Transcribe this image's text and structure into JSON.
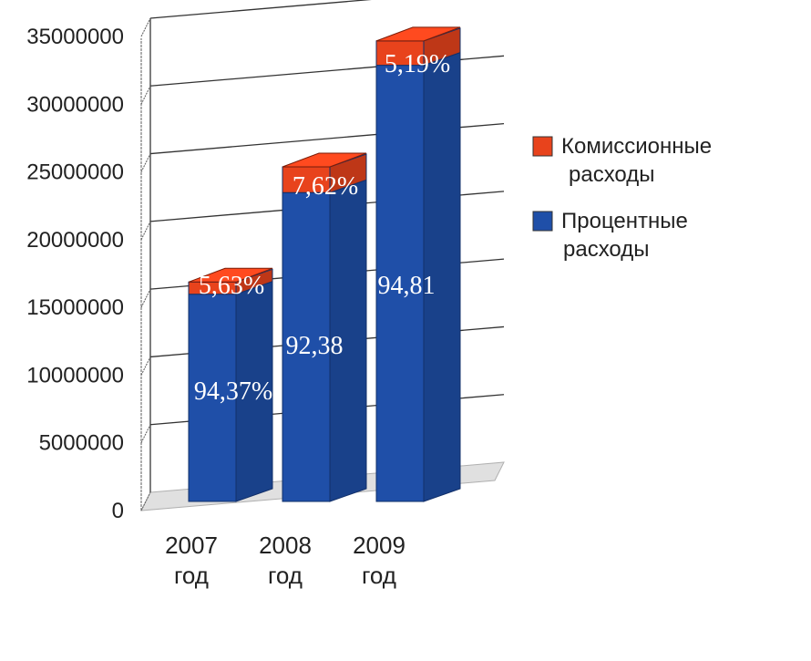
{
  "chart_data": {
    "type": "bar",
    "stacked": true,
    "three_d": true,
    "categories": [
      "2007 год",
      "2008 год",
      "2009 год"
    ],
    "series": [
      {
        "name": "Процентные расходы",
        "color": "#1f4fa8",
        "values": [
          15300000,
          22800000,
          32200000
        ],
        "labels": [
          "94,37%",
          "92,38",
          "94,81"
        ]
      },
      {
        "name": "Комиссионные расходы",
        "color": "#e8431c",
        "values": [
          900000,
          1900000,
          1800000
        ],
        "labels": [
          "5,63%",
          "7,62%",
          "5,19%"
        ]
      }
    ],
    "ylim": [
      0,
      35000000
    ],
    "yticks": [
      "0",
      "5000000",
      "10000000",
      "15000000",
      "20000000",
      "25000000",
      "30000000",
      "35000000"
    ],
    "grid": true,
    "legend_position": "right"
  }
}
